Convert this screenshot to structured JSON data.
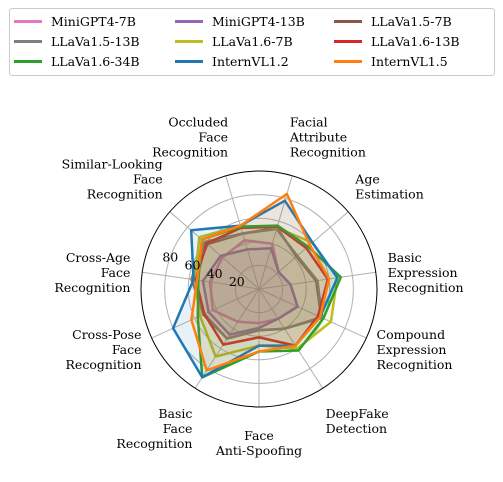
{
  "chart_data": {
    "type": "radar",
    "axes": [
      "Facial\nAttribute\nRecognition",
      "Age\nEstimation",
      "Basic\nExpression\nRecognition",
      "Compound\nExpression\nRecognition",
      "DeepFake\nDetection",
      "Face\nAnti-Spoofing",
      "Basic\nFace\nRecognition",
      "Cross-Pose\nFace\nRecognition",
      "Cross-Age\nFace\nRecognition",
      "Similar-Looking\nFace\nRecognition",
      "Occluded\nFace\nRecognition"
    ],
    "rmax": 100,
    "rticks": [
      20,
      40,
      60,
      80
    ],
    "grid": true,
    "legend_position": "top",
    "series": [
      {
        "name": "MiniGPT4-7B",
        "color": "#e377c2",
        "values": [
          40,
          22,
          27,
          36,
          30,
          29,
          33,
          43,
          42,
          41,
          43
        ]
      },
      {
        "name": "MiniGPT4-13B",
        "color": "#9467bd",
        "values": [
          36,
          22,
          27,
          36,
          30,
          33,
          46,
          47,
          48,
          43,
          35
        ]
      },
      {
        "name": "LLaVa1.5-7B",
        "color": "#8c564b",
        "values": [
          54,
          42,
          49,
          58,
          40,
          35,
          50,
          52,
          56,
          58,
          49
        ]
      },
      {
        "name": "LLaVa1.5-13B",
        "color": "#7f7f7f",
        "values": [
          53,
          43,
          50,
          59,
          40,
          35,
          50,
          51,
          58,
          61,
          49
        ]
      },
      {
        "name": "LLaVa1.6-7B",
        "color": "#bcbd22",
        "values": [
          54,
          60,
          67,
          67,
          60,
          48,
          68,
          55,
          55,
          67,
          56
        ]
      },
      {
        "name": "LLaVa1.6-13B",
        "color": "#d62728",
        "values": [
          55,
          53,
          59,
          55,
          57,
          41,
          56,
          51,
          54,
          59,
          54
        ]
      },
      {
        "name": "LLaVa1.6-34B",
        "color": "#2ca02c",
        "values": [
          56,
          55,
          70,
          60,
          62,
          53,
          89,
          57,
          52,
          64,
          55
        ]
      },
      {
        "name": "InternVL1.2",
        "color": "#1f77b4",
        "values": [
          78,
          60,
          67,
          57,
          57,
          48,
          89,
          80,
          56,
          76,
          56
        ]
      },
      {
        "name": "InternVL1.5",
        "color": "#ff7f0e",
        "values": [
          84,
          57,
          60,
          57,
          57,
          53,
          82,
          63,
          53,
          64,
          56
        ]
      }
    ]
  }
}
